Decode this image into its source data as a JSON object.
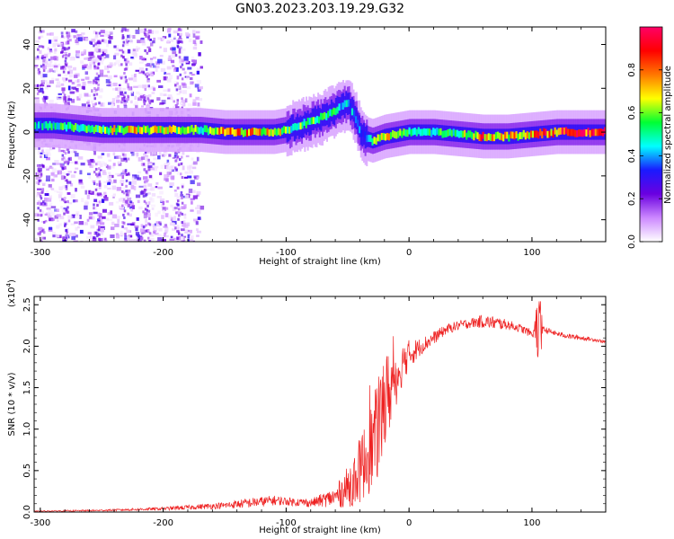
{
  "title": "GN03.2023.203.19.29.G32",
  "chart_data": [
    {
      "type": "heatmap",
      "xlabel": "Height of straight line (km)",
      "ylabel": "Frequency (Hz)",
      "xlim": [
        -305,
        160
      ],
      "ylim": [
        -50,
        48
      ],
      "xticks": [
        -300,
        -200,
        -100,
        0,
        100
      ],
      "yticks": [
        -40,
        -20,
        0,
        20,
        40
      ],
      "colorbar": {
        "label": "Normalized spectral amplitude",
        "range": [
          0.0,
          1.0
        ],
        "ticks": [
          0.0,
          0.2,
          0.4,
          0.6,
          0.8
        ],
        "colormap": "rainbow",
        "colors": [
          "#ffffff",
          "#cc88ff",
          "#6a00e0",
          "#1a1aff",
          "#00ffff",
          "#00ff33",
          "#ffff00",
          "#ff7700",
          "#ff0000",
          "#ff0066"
        ]
      },
      "noise_extent_x": [
        -305,
        -170
      ],
      "ridge": {
        "x": [
          -305,
          -290,
          -270,
          -250,
          -230,
          -210,
          -190,
          -170,
          -150,
          -130,
          -110,
          -100,
          -90,
          -80,
          -70,
          -60,
          -55,
          -50,
          -45,
          -40,
          -35,
          -30,
          -20,
          -10,
          0,
          20,
          40,
          60,
          80,
          100,
          120,
          140,
          160
        ],
        "y": [
          3,
          3,
          2,
          1,
          1,
          1,
          1,
          1,
          0,
          0,
          0,
          1,
          3,
          5,
          7,
          10,
          12,
          13,
          8,
          0,
          -3,
          -4,
          -2,
          -1,
          0,
          0,
          -1,
          -2,
          -2,
          -1,
          0,
          0,
          0
        ],
        "amplitude": [
          0.45,
          0.5,
          0.55,
          0.6,
          0.7,
          0.7,
          0.6,
          0.55,
          0.75,
          0.75,
          0.7,
          0.55,
          0.55,
          0.55,
          0.55,
          0.5,
          0.45,
          0.45,
          0.4,
          0.35,
          0.45,
          0.55,
          0.75,
          0.55,
          0.5,
          0.5,
          0.55,
          0.8,
          0.7,
          0.8,
          0.85,
          0.9,
          0.9
        ]
      }
    },
    {
      "type": "line",
      "xlabel": "Height of straight line (km)",
      "ylabel": "SNR (10 * v/v)",
      "y_scale_label": "(x10",
      "y_scale_exponent": "4",
      "xlim": [
        -305,
        160
      ],
      "ylim": [
        0,
        2.6
      ],
      "xticks": [
        -300,
        -200,
        -100,
        0,
        100
      ],
      "yticks": [
        0.0,
        0.5,
        1.0,
        1.5,
        2.0,
        2.5
      ],
      "color": "#ee2222",
      "series": [
        {
          "x": [
            -305,
            -250,
            -200,
            -150,
            -130,
            -110,
            -100,
            -80,
            -60,
            -50,
            -40,
            -30,
            -25,
            -20,
            -15,
            -10,
            -5,
            0,
            10,
            20,
            30,
            40,
            50,
            60,
            70,
            80,
            90,
            100,
            110,
            120,
            130,
            140,
            150,
            160
          ],
          "y": [
            0.01,
            0.02,
            0.04,
            0.08,
            0.11,
            0.14,
            0.13,
            0.11,
            0.18,
            0.3,
            0.5,
            0.8,
            1.0,
            1.3,
            1.5,
            1.65,
            1.8,
            1.9,
            2.0,
            2.1,
            2.2,
            2.25,
            2.28,
            2.3,
            2.28,
            2.26,
            2.22,
            2.15,
            2.2,
            2.15,
            2.12,
            2.1,
            2.08,
            2.05
          ],
          "noise": [
            0.005,
            0.01,
            0.02,
            0.04,
            0.06,
            0.06,
            0.05,
            0.05,
            0.12,
            0.25,
            0.4,
            0.55,
            0.6,
            0.6,
            0.5,
            0.35,
            0.25,
            0.18,
            0.1,
            0.08,
            0.06,
            0.06,
            0.06,
            0.08,
            0.08,
            0.06,
            0.05,
            0.05,
            0.04,
            0.03,
            0.03,
            0.03,
            0.02,
            0.02
          ]
        }
      ]
    }
  ]
}
